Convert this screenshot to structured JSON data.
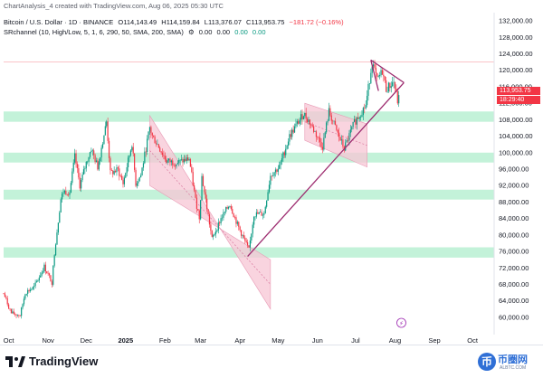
{
  "header": {
    "caption": "ChartAnalysis_4 created with TradingView.com, Aug 06, 2025 05:30 UTC"
  },
  "legend": {
    "symbol": "Bitcoin / U.S. Dollar · 1D · BINANCE",
    "open": "O114,143.49",
    "high": "H114,159.84",
    "low": "L113,376.07",
    "close": "C113,953.75",
    "change": "−181.72 (−0.16%)",
    "indicator": "SRchannel (10, High/Low, 5, 1, 6, 290, 50, SMA, 200, SMA)",
    "indicator_values": [
      "0.00",
      "0.00",
      "0.00",
      "0.00"
    ]
  },
  "price_tag": {
    "price": "113,953.75",
    "countdown": "18:29:40",
    "color": "#f23645"
  },
  "footer": {
    "brand": "TradingView",
    "watermark_cn": "币圈网",
    "watermark_url": "ALBTC.COM"
  },
  "colors": {
    "up": "#089981",
    "down": "#f23645",
    "zone": "#b9f0d2",
    "channel": "#f7c6d4",
    "trend": "#9c2a6e"
  },
  "chart_data": {
    "type": "candlestick",
    "ylim": [
      58000,
      134000
    ],
    "y_ticks": [
      "60,000.00",
      "64,000.00",
      "68,000.00",
      "72,000.00",
      "76,000.00",
      "80,000.00",
      "84,000.00",
      "88,000.00",
      "92,000.00",
      "96,000.00",
      "100,000.00",
      "104,000.00",
      "108,000.00",
      "112,000.00",
      "116,000.00",
      "120,000.00",
      "124,000.00",
      "128,000.00",
      "132,000.00"
    ],
    "x_ticks": [
      {
        "label": "Oct",
        "date": "2024-10-01"
      },
      {
        "label": "Nov",
        "date": "2024-11-01"
      },
      {
        "label": "Dec",
        "date": "2024-12-01"
      },
      {
        "label": "2025",
        "date": "2025-01-01",
        "bold": true
      },
      {
        "label": "Feb",
        "date": "2025-02-01"
      },
      {
        "label": "Mar",
        "date": "2025-03-01"
      },
      {
        "label": "Apr",
        "date": "2025-04-01"
      },
      {
        "label": "May",
        "date": "2025-05-01"
      },
      {
        "label": "Jun",
        "date": "2025-06-01"
      },
      {
        "label": "Jul",
        "date": "2025-07-01"
      },
      {
        "label": "Aug",
        "date": "2025-08-01"
      },
      {
        "label": "Sep",
        "date": "2025-09-01"
      },
      {
        "label": "Oct",
        "date": "2025-10-01"
      }
    ],
    "date_range": [
      "2024-09-27",
      "2025-10-18"
    ],
    "support_zones": [
      {
        "low": 107500,
        "high": 110000
      },
      {
        "low": 97600,
        "high": 100000
      },
      {
        "low": 88600,
        "high": 91000
      },
      {
        "low": 74500,
        "high": 77000
      }
    ],
    "resistance_line": 122000,
    "channels": [
      {
        "points": [
          [
            "2025-01-20",
            109000
          ],
          [
            "2025-04-25",
            62000
          ],
          [
            "2025-04-25",
            74000
          ],
          [
            "2025-01-20",
            92000
          ]
        ]
      },
      {
        "points": [
          [
            "2025-05-22",
            112000
          ],
          [
            "2025-07-10",
            107000
          ],
          [
            "2025-07-10",
            96500
          ],
          [
            "2025-05-22",
            103000
          ]
        ]
      }
    ],
    "trend_lines": [
      [
        [
          "2025-04-07",
          74800
        ],
        [
          "2025-08-08",
          117000
        ]
      ],
      [
        [
          "2025-07-13",
          122500
        ],
        [
          "2025-08-08",
          117000
        ]
      ],
      [
        [
          "2025-07-13",
          122500
        ],
        [
          "2025-07-19",
          115000
        ]
      ]
    ],
    "close_path": [
      [
        "2024-09-27",
        65800
      ],
      [
        "2024-10-03",
        61000
      ],
      [
        "2024-10-10",
        60500
      ],
      [
        "2024-10-14",
        66000
      ],
      [
        "2024-10-21",
        67300
      ],
      [
        "2024-10-29",
        72300
      ],
      [
        "2024-11-04",
        68500
      ],
      [
        "2024-11-06",
        75700
      ],
      [
        "2024-11-11",
        88700
      ],
      [
        "2024-11-13",
        90500
      ],
      [
        "2024-11-18",
        90500
      ],
      [
        "2024-11-22",
        99000
      ],
      [
        "2024-11-26",
        92000
      ],
      [
        "2024-12-01",
        97500
      ],
      [
        "2024-12-05",
        101000
      ],
      [
        "2024-12-10",
        96500
      ],
      [
        "2024-12-16",
        106000
      ],
      [
        "2024-12-17",
        107500
      ],
      [
        "2024-12-20",
        95000
      ],
      [
        "2024-12-26",
        95800
      ],
      [
        "2024-12-30",
        92500
      ],
      [
        "2025-01-06",
        102200
      ],
      [
        "2025-01-09",
        92500
      ],
      [
        "2025-01-13",
        94500
      ],
      [
        "2025-01-20",
        106000
      ],
      [
        "2025-01-22",
        104000
      ],
      [
        "2025-01-27",
        101500
      ],
      [
        "2025-02-02",
        98000
      ],
      [
        "2025-02-10",
        97500
      ],
      [
        "2025-02-20",
        98500
      ],
      [
        "2025-02-25",
        88500
      ],
      [
        "2025-02-28",
        84300
      ],
      [
        "2025-03-02",
        94200
      ],
      [
        "2025-03-10",
        79000
      ],
      [
        "2025-03-17",
        84000
      ],
      [
        "2025-03-24",
        87500
      ],
      [
        "2025-03-30",
        82500
      ],
      [
        "2025-04-08",
        76300
      ],
      [
        "2025-04-12",
        85000
      ],
      [
        "2025-04-20",
        85200
      ],
      [
        "2025-04-25",
        94500
      ],
      [
        "2025-05-02",
        96500
      ],
      [
        "2025-05-10",
        104000
      ],
      [
        "2025-05-21",
        109500
      ],
      [
        "2025-05-25",
        107800
      ],
      [
        "2025-06-05",
        101500
      ],
      [
        "2025-06-10",
        110000
      ],
      [
        "2025-06-17",
        104500
      ],
      [
        "2025-06-22",
        101000
      ],
      [
        "2025-06-30",
        107300
      ],
      [
        "2025-07-09",
        111500
      ],
      [
        "2025-07-14",
        122000
      ],
      [
        "2025-07-18",
        117500
      ],
      [
        "2025-07-22",
        119800
      ],
      [
        "2025-07-25",
        115500
      ],
      [
        "2025-07-31",
        117200
      ],
      [
        "2025-08-03",
        112500
      ],
      [
        "2025-08-05",
        113950
      ]
    ]
  }
}
